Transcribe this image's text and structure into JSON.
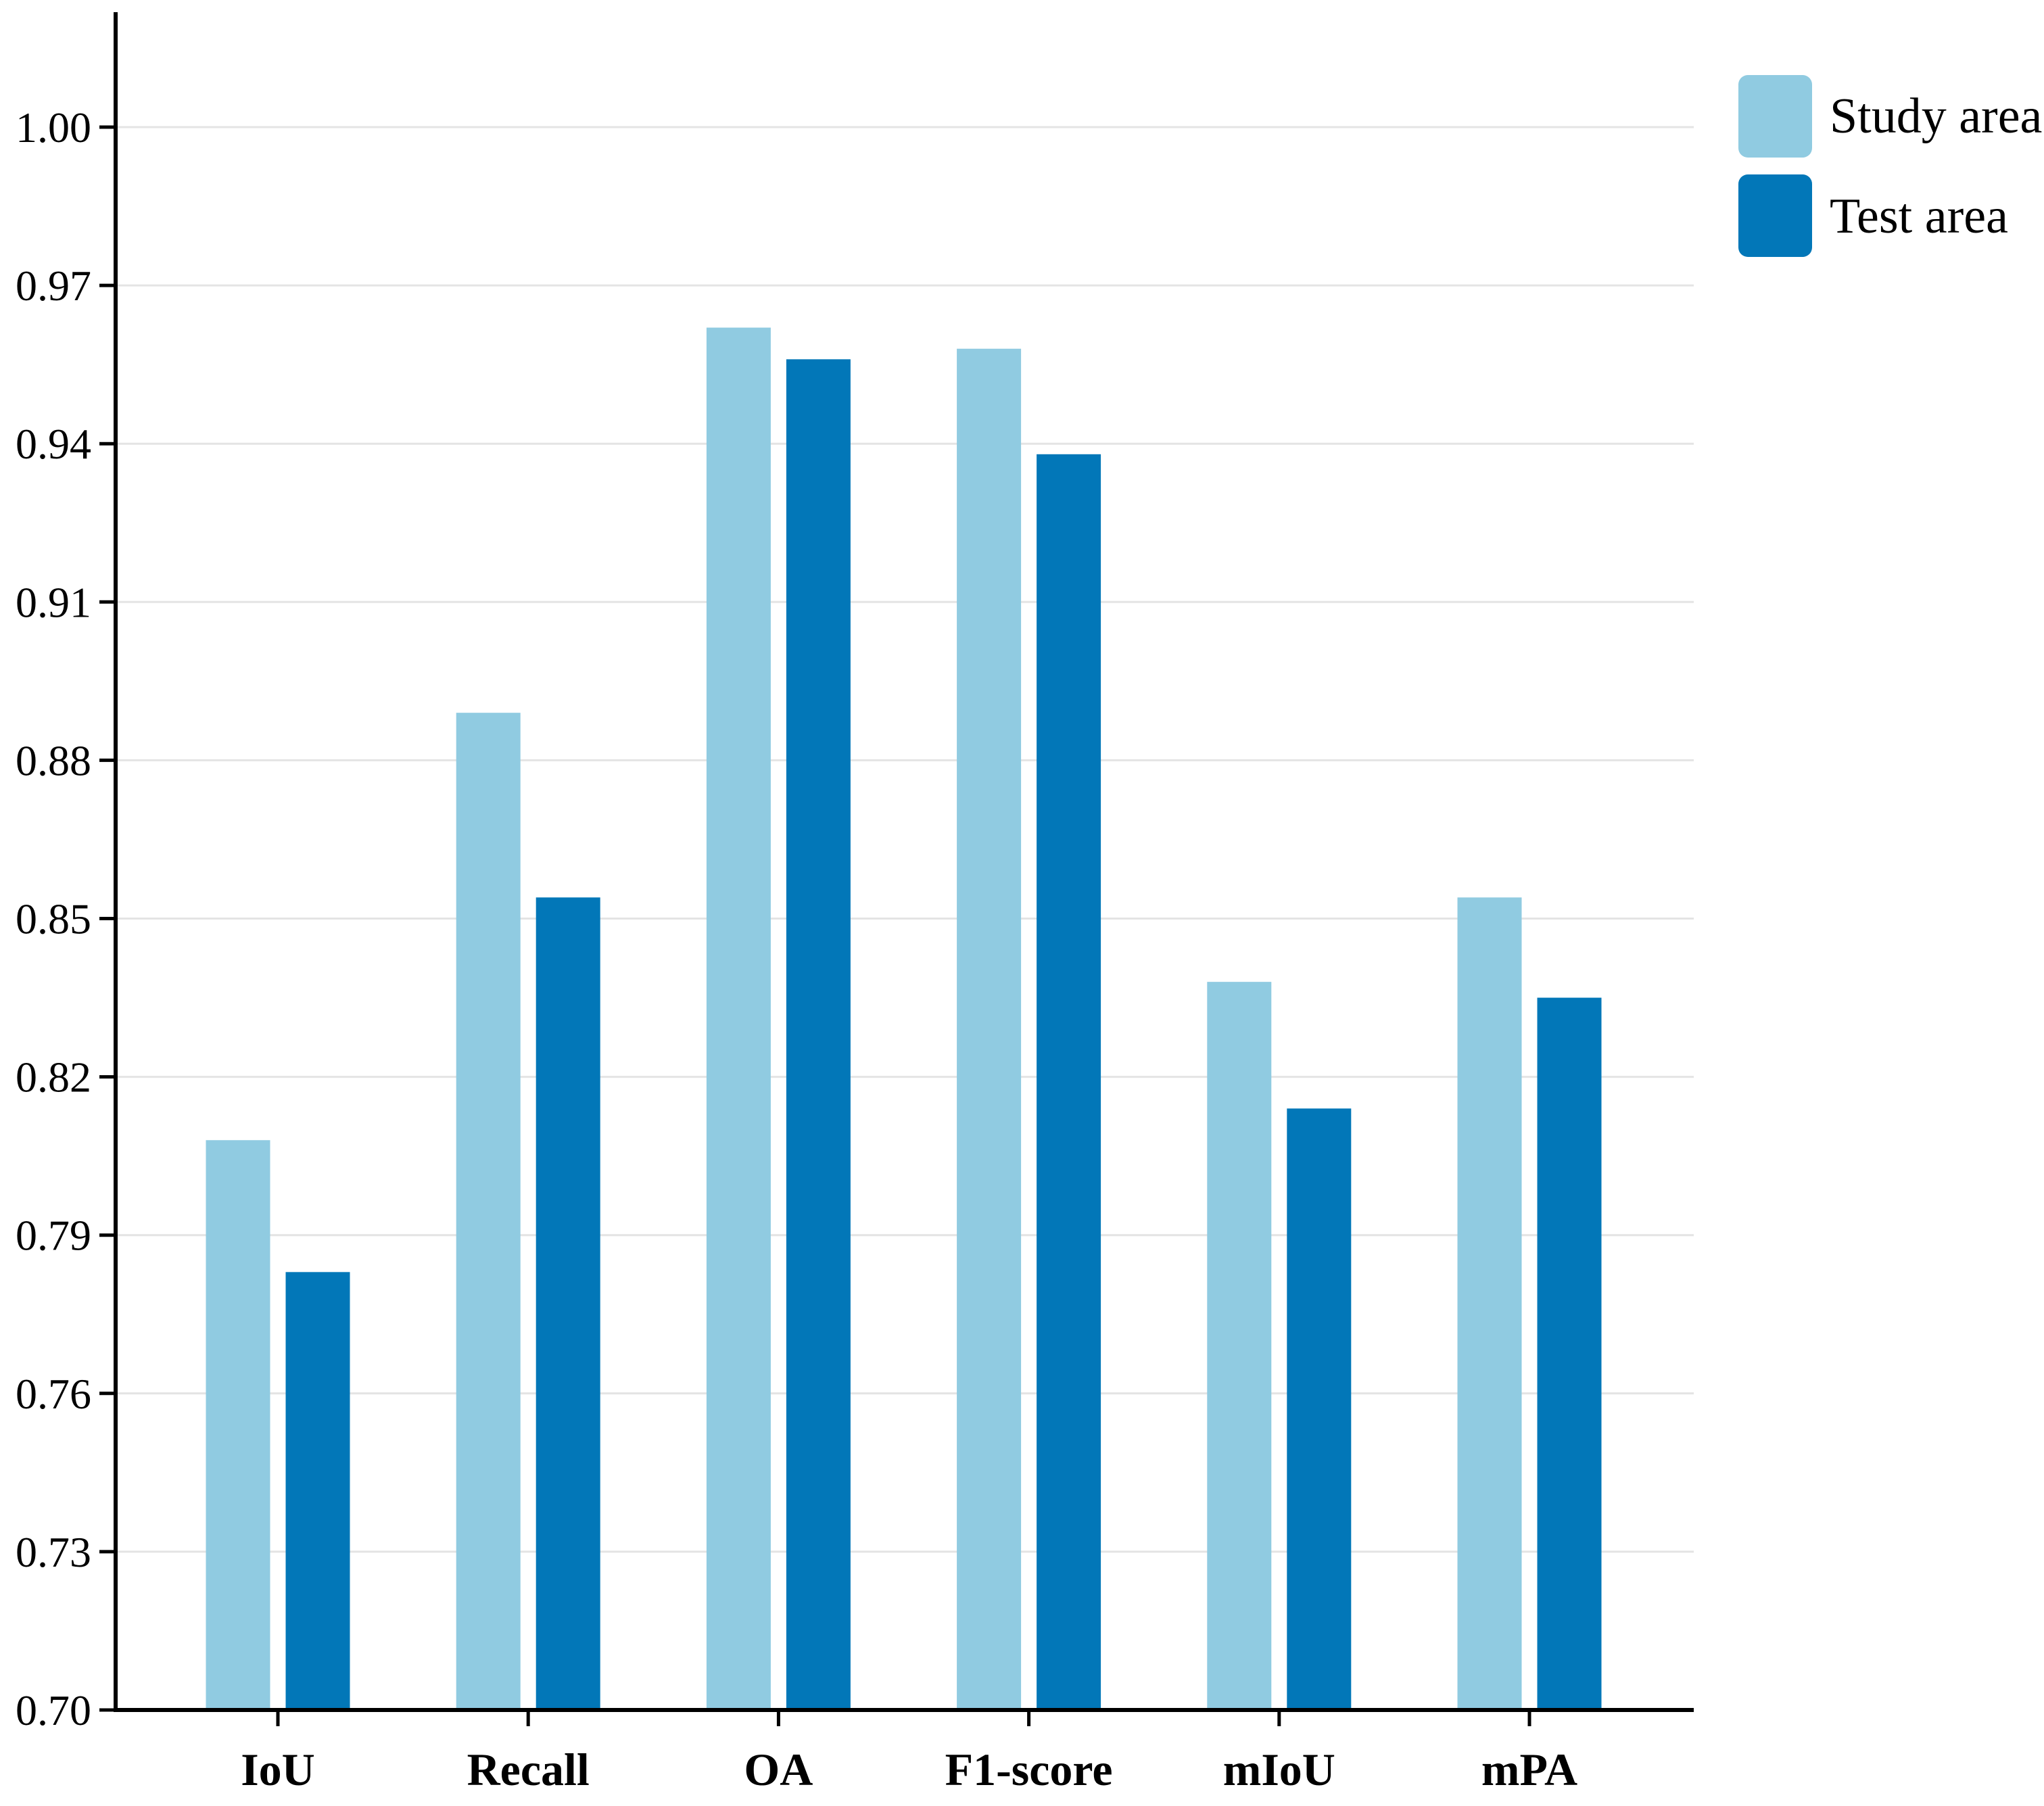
{
  "chart_data": {
    "type": "bar",
    "title": "",
    "xlabel": "",
    "ylabel": "",
    "categories": [
      "IoU",
      "Recall",
      "OA",
      "F1-score",
      "mIoU",
      "mPA"
    ],
    "series": [
      {
        "name": "Study area",
        "color": "#90CBE1",
        "values": [
          0.808,
          0.889,
          0.962,
          0.958,
          0.838,
          0.854
        ]
      },
      {
        "name": "Test area",
        "color": "#0277B8",
        "values": [
          0.783,
          0.854,
          0.956,
          0.938,
          0.814,
          0.835
        ]
      }
    ],
    "ylim": [
      0.7,
      1.0
    ],
    "ytick_labels": [
      "0.70",
      "0.73",
      "0.76",
      "0.79",
      "0.82",
      "0.85",
      "0.88",
      "0.91",
      "0.94",
      "0.97",
      "1.00"
    ],
    "grid": "horizontal gridlines at every y tick",
    "grid_color": "#e4e4e4",
    "axis_color": "#000000",
    "legend_position": "top-right"
  }
}
